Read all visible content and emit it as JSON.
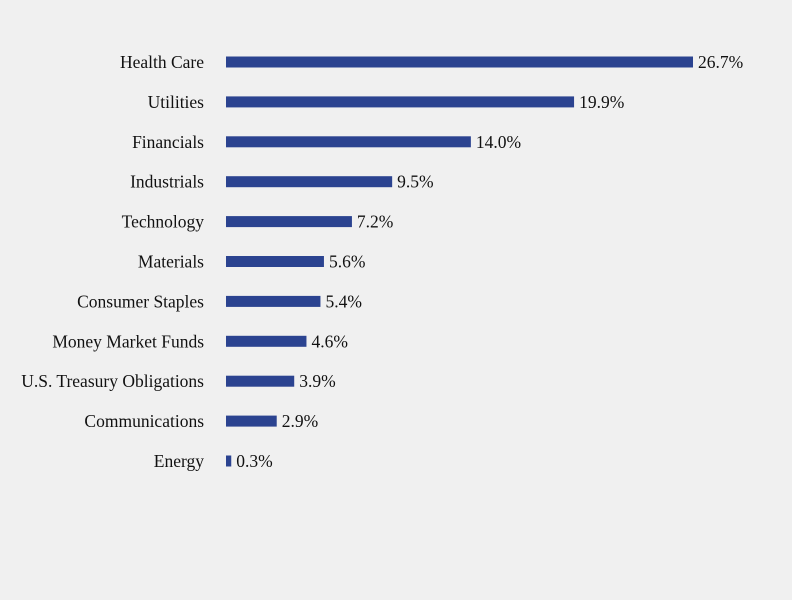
{
  "chart_data": {
    "type": "bar",
    "orientation": "horizontal",
    "categories": [
      "Health Care",
      "Utilities",
      "Financials",
      "Industrials",
      "Technology",
      "Materials",
      "Consumer Staples",
      "Money Market Funds",
      "U.S. Treasury Obligations",
      "Communications",
      "Energy"
    ],
    "values": [
      26.7,
      19.9,
      14.0,
      9.5,
      7.2,
      5.6,
      5.4,
      4.6,
      3.9,
      2.9,
      0.3
    ],
    "value_labels": [
      "26.7%",
      "19.9%",
      "14.0%",
      "9.5%",
      "7.2%",
      "5.6%",
      "5.4%",
      "4.6%",
      "3.9%",
      "2.9%",
      "0.3%"
    ],
    "bar_color": "#2b4390",
    "background_color": "#f0f0f0",
    "grid": false,
    "legend": "none",
    "xlim": [
      0,
      26.7
    ]
  }
}
